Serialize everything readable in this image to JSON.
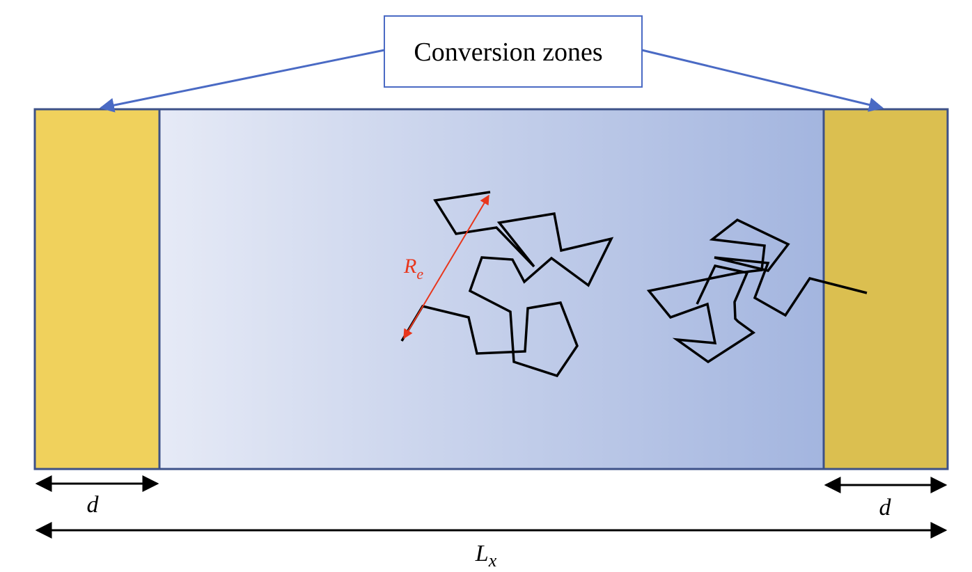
{
  "callout": {
    "label": "Conversion zones"
  },
  "dimensions": {
    "zone_width_left": "d",
    "zone_width_right": "d",
    "box_length_main": "L",
    "box_length_sub": "x"
  },
  "chain_annotation": {
    "end_to_end_main": "R",
    "end_to_end_sub": "e"
  },
  "colors": {
    "zone_left": "#f0d15c",
    "zone_right": "#dbbf50",
    "gradient_start": "#e6eaf6",
    "gradient_end": "#a3b5df",
    "border": "#3d5188",
    "callout_arrow": "#4a6ac4",
    "re_arrow": "#e8361c",
    "chain": "#000000"
  }
}
